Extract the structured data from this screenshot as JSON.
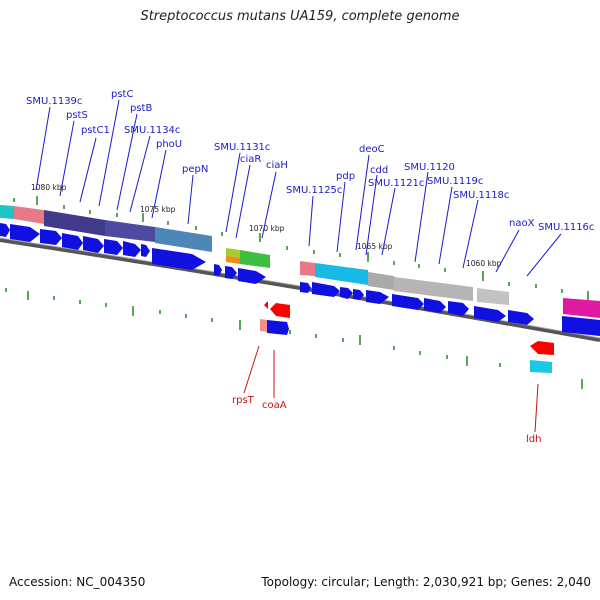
{
  "title": "Streptococcus mutans UA159, complete genome",
  "footer": {
    "accession": "Accession: NC_004350",
    "summary": "Topology: circular; Length: 2,030,921 bp; Genes: 2,040"
  },
  "colors": {
    "label_forward": "#1a1acc",
    "label_reverse": "#cc1111",
    "backbone": "#777777",
    "tick": "#1d8a1d",
    "cds": "#1010e0",
    "cds_reverse": "#ff0000"
  },
  "kbp_marks": [
    "1080 kbp",
    "1075 kbp",
    "1070 kbp",
    "1065 kbp",
    "1060 kbp"
  ],
  "gene_labels_top": [
    "SMU.1139c",
    "pstS",
    "pstC1",
    "pstC",
    "pstB",
    "SMU.1134c",
    "phoU",
    "pepN",
    "SMU.1131c",
    "ciaR",
    "ciaH",
    "SMU.1125c",
    "pdp",
    "deoC",
    "cdd",
    "SMU.1121c",
    "SMU.1120",
    "SMU.1119c",
    "SMU.1118c",
    "naoX",
    "SMU.1116c"
  ],
  "gene_labels_bottom": [
    "rpsT",
    "coaA",
    "ldh"
  ]
}
